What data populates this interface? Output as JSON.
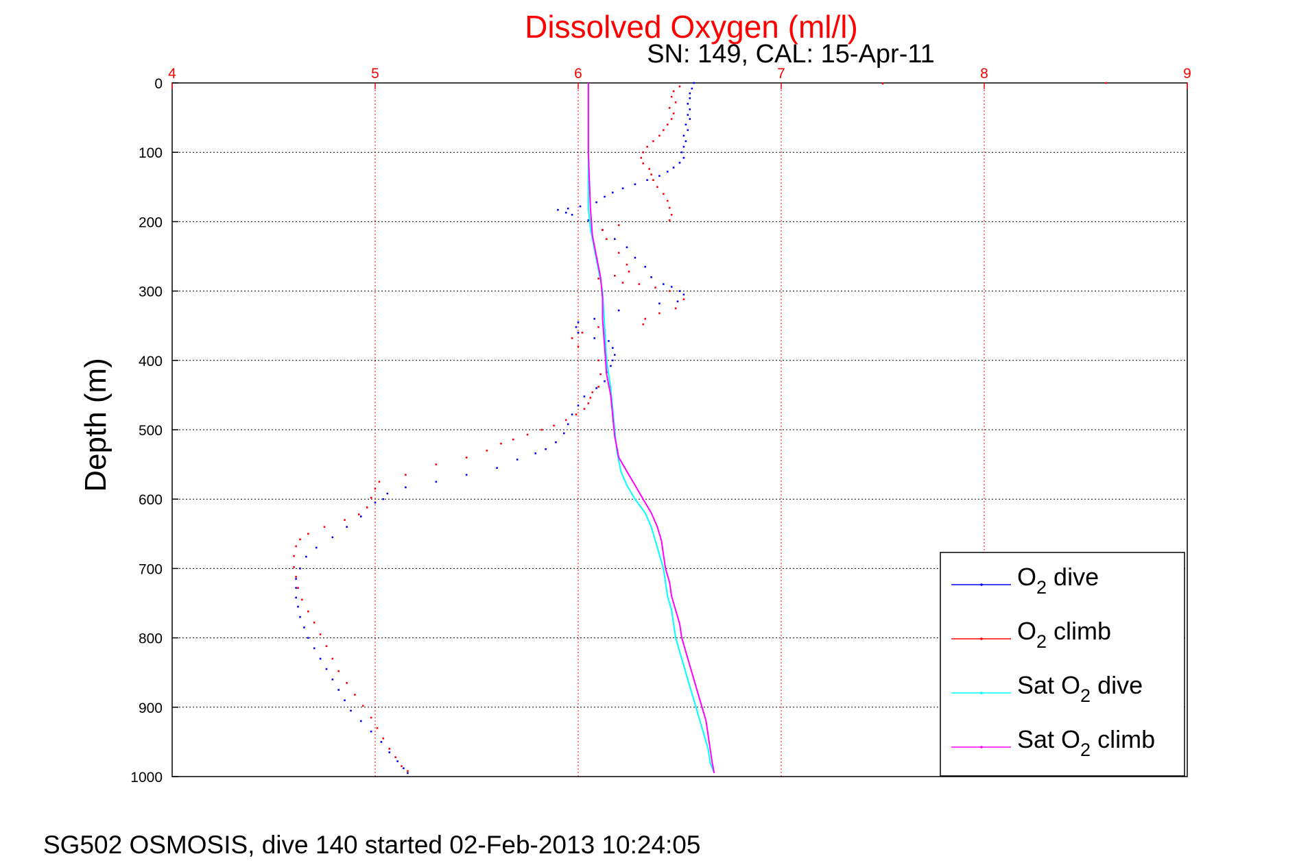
{
  "chart_data": {
    "type": "scatter",
    "title": "Dissolved Oxygen (ml/l)",
    "subtitle": "SN: 149, CAL: 15-Apr-11",
    "ylabel": "Depth (m)",
    "xlabel": "",
    "xlim": [
      4,
      9
    ],
    "ylim": [
      0,
      1000
    ],
    "y_reversed": true,
    "x_axis_position": "top",
    "x_ticks": [
      4,
      5,
      6,
      7,
      8,
      9
    ],
    "y_ticks": [
      0,
      100,
      200,
      300,
      400,
      500,
      600,
      700,
      800,
      900,
      1000
    ],
    "grid": true,
    "legend_position": "bottom-right",
    "colors": {
      "title": "#ff0000",
      "x_axis": "#ff0000",
      "y_axis": "#000000"
    },
    "series": [
      {
        "name": "O2 dive",
        "legend_label": {
          "base": "O",
          "sub": "2",
          "suffix": " dive"
        },
        "color": "#0000ff",
        "style": "points",
        "points": [
          [
            6.57,
            0
          ],
          [
            6.56,
            8
          ],
          [
            6.55,
            15
          ],
          [
            6.55,
            22
          ],
          [
            6.54,
            30
          ],
          [
            6.55,
            38
          ],
          [
            6.54,
            46
          ],
          [
            6.55,
            52
          ],
          [
            6.53,
            60
          ],
          [
            6.54,
            68
          ],
          [
            6.52,
            76
          ],
          [
            6.53,
            84
          ],
          [
            6.52,
            92
          ],
          [
            6.51,
            100
          ],
          [
            6.52,
            108
          ],
          [
            6.5,
            115
          ],
          [
            6.47,
            122
          ],
          [
            6.44,
            128
          ],
          [
            6.4,
            134
          ],
          [
            6.34,
            140
          ],
          [
            6.28,
            146
          ],
          [
            6.22,
            152
          ],
          [
            6.17,
            158
          ],
          [
            6.13,
            164
          ],
          [
            6.09,
            172
          ],
          [
            6.01,
            178
          ],
          [
            5.95,
            181
          ],
          [
            5.9,
            183
          ],
          [
            5.94,
            187
          ],
          [
            5.97,
            190
          ],
          [
            6.05,
            198
          ],
          [
            6.12,
            212
          ],
          [
            6.18,
            225
          ],
          [
            6.24,
            237
          ],
          [
            6.28,
            252
          ],
          [
            6.33,
            265
          ],
          [
            6.36,
            280
          ],
          [
            6.42,
            290
          ],
          [
            6.46,
            294
          ],
          [
            6.5,
            300
          ],
          [
            6.52,
            305
          ],
          [
            6.49,
            315
          ],
          [
            6.4,
            318
          ],
          [
            6.2,
            328
          ],
          [
            6.08,
            340
          ],
          [
            6.0,
            345
          ],
          [
            5.99,
            352
          ],
          [
            6.0,
            360
          ],
          [
            6.08,
            368
          ],
          [
            6.15,
            372
          ],
          [
            6.17,
            382
          ],
          [
            6.18,
            392
          ],
          [
            6.17,
            400
          ],
          [
            6.16,
            408
          ],
          [
            6.14,
            417
          ],
          [
            6.13,
            430
          ],
          [
            6.09,
            440
          ],
          [
            6.03,
            452
          ],
          [
            6.0,
            465
          ],
          [
            5.97,
            478
          ],
          [
            5.95,
            492
          ],
          [
            5.93,
            505
          ],
          [
            5.89,
            518
          ],
          [
            5.84,
            528
          ],
          [
            5.79,
            534
          ],
          [
            5.7,
            543
          ],
          [
            5.6,
            555
          ],
          [
            5.45,
            565
          ],
          [
            5.3,
            575
          ],
          [
            5.15,
            583
          ],
          [
            5.06,
            592
          ],
          [
            5.04,
            600
          ],
          [
            5.0,
            605
          ],
          [
            4.96,
            612
          ],
          [
            4.93,
            625
          ],
          [
            4.86,
            640
          ],
          [
            4.79,
            655
          ],
          [
            4.71,
            670
          ],
          [
            4.66,
            683
          ],
          [
            4.63,
            700
          ],
          [
            4.61,
            715
          ],
          [
            4.61,
            728
          ],
          [
            4.61,
            742
          ],
          [
            4.62,
            755
          ],
          [
            4.63,
            770
          ],
          [
            4.65,
            785
          ],
          [
            4.67,
            800
          ],
          [
            4.7,
            815
          ],
          [
            4.73,
            830
          ],
          [
            4.76,
            845
          ],
          [
            4.79,
            860
          ],
          [
            4.82,
            875
          ],
          [
            4.85,
            890
          ],
          [
            4.88,
            905
          ],
          [
            4.93,
            920
          ],
          [
            4.98,
            935
          ],
          [
            5.03,
            950
          ],
          [
            5.07,
            965
          ],
          [
            5.11,
            978
          ],
          [
            5.14,
            988
          ],
          [
            5.16,
            995
          ]
        ]
      },
      {
        "name": "O2 climb",
        "legend_label": {
          "base": "O",
          "sub": "2",
          "suffix": " climb"
        },
        "color": "#ff0000",
        "style": "points",
        "points": [
          [
            8.6,
            0
          ],
          [
            7.5,
            1
          ],
          [
            6.5,
            5
          ],
          [
            6.47,
            12
          ],
          [
            6.46,
            20
          ],
          [
            6.48,
            28
          ],
          [
            6.45,
            36
          ],
          [
            6.47,
            44
          ],
          [
            6.46,
            52
          ],
          [
            6.44,
            60
          ],
          [
            6.42,
            68
          ],
          [
            6.4,
            76
          ],
          [
            6.37,
            84
          ],
          [
            6.34,
            92
          ],
          [
            6.32,
            100
          ],
          [
            6.31,
            108
          ],
          [
            6.32,
            116
          ],
          [
            6.35,
            124
          ],
          [
            6.36,
            132
          ],
          [
            6.37,
            140
          ],
          [
            6.39,
            150
          ],
          [
            6.42,
            160
          ],
          [
            6.44,
            170
          ],
          [
            6.45,
            180
          ],
          [
            6.46,
            190
          ],
          [
            6.45,
            198
          ],
          [
            6.2,
            205
          ],
          [
            6.12,
            212
          ],
          [
            6.14,
            225
          ],
          [
            6.2,
            245
          ],
          [
            6.24,
            262
          ],
          [
            6.25,
            272
          ],
          [
            6.18,
            278
          ],
          [
            6.1,
            282
          ],
          [
            6.22,
            288
          ],
          [
            6.3,
            290
          ],
          [
            6.38,
            295
          ],
          [
            6.45,
            300
          ],
          [
            6.52,
            312
          ],
          [
            6.48,
            325
          ],
          [
            6.4,
            332
          ],
          [
            6.33,
            340
          ],
          [
            6.32,
            348
          ],
          [
            6.1,
            352
          ],
          [
            6.02,
            360
          ],
          [
            5.97,
            368
          ],
          [
            6.0,
            380
          ],
          [
            6.1,
            400
          ],
          [
            6.11,
            420
          ],
          [
            6.1,
            438
          ],
          [
            6.07,
            446
          ],
          [
            6.06,
            454
          ],
          [
            6.05,
            462
          ],
          [
            6.03,
            470
          ],
          [
            5.99,
            478
          ],
          [
            5.94,
            486
          ],
          [
            5.88,
            494
          ],
          [
            5.82,
            500
          ],
          [
            5.75,
            507
          ],
          [
            5.68,
            514
          ],
          [
            5.62,
            520
          ],
          [
            5.55,
            530
          ],
          [
            5.45,
            540
          ],
          [
            5.3,
            550
          ],
          [
            5.15,
            565
          ],
          [
            5.02,
            575
          ],
          [
            5.0,
            585
          ],
          [
            4.98,
            598
          ],
          [
            4.96,
            612
          ],
          [
            4.92,
            622
          ],
          [
            4.85,
            630
          ],
          [
            4.75,
            640
          ],
          [
            4.67,
            650
          ],
          [
            4.63,
            658
          ],
          [
            4.61,
            668
          ],
          [
            4.6,
            682
          ],
          [
            4.6,
            698
          ],
          [
            4.61,
            712
          ],
          [
            4.62,
            728
          ],
          [
            4.64,
            745
          ],
          [
            4.67,
            762
          ],
          [
            4.7,
            778
          ],
          [
            4.73,
            795
          ],
          [
            4.76,
            812
          ],
          [
            4.79,
            830
          ],
          [
            4.82,
            848
          ],
          [
            4.86,
            865
          ],
          [
            4.9,
            882
          ],
          [
            4.94,
            898
          ],
          [
            4.98,
            915
          ],
          [
            5.01,
            930
          ],
          [
            5.04,
            945
          ],
          [
            5.07,
            960
          ],
          [
            5.1,
            972
          ],
          [
            5.13,
            985
          ],
          [
            5.16,
            992
          ]
        ]
      },
      {
        "name": "Sat O2 dive",
        "legend_label": {
          "base": "Sat O",
          "sub": "2",
          "suffix": " dive"
        },
        "color": "#00ffff",
        "style": "line",
        "points": [
          [
            6.05,
            0
          ],
          [
            6.05,
            100
          ],
          [
            6.05,
            180
          ],
          [
            6.06,
            210
          ],
          [
            6.08,
            240
          ],
          [
            6.1,
            270
          ],
          [
            6.12,
            300
          ],
          [
            6.13,
            350
          ],
          [
            6.14,
            400
          ],
          [
            6.16,
            440
          ],
          [
            6.17,
            470
          ],
          [
            6.18,
            500
          ],
          [
            6.19,
            530
          ],
          [
            6.21,
            560
          ],
          [
            6.24,
            580
          ],
          [
            6.28,
            600
          ],
          [
            6.33,
            620
          ],
          [
            6.36,
            640
          ],
          [
            6.38,
            660
          ],
          [
            6.4,
            680
          ],
          [
            6.42,
            700
          ],
          [
            6.43,
            720
          ],
          [
            6.44,
            740
          ],
          [
            6.46,
            760
          ],
          [
            6.47,
            780
          ],
          [
            6.48,
            800
          ],
          [
            6.5,
            820
          ],
          [
            6.52,
            840
          ],
          [
            6.54,
            860
          ],
          [
            6.56,
            880
          ],
          [
            6.58,
            900
          ],
          [
            6.6,
            920
          ],
          [
            6.62,
            940
          ],
          [
            6.64,
            960
          ],
          [
            6.65,
            980
          ],
          [
            6.67,
            995
          ]
        ]
      },
      {
        "name": "Sat O2 climb",
        "legend_label": {
          "base": "Sat O",
          "sub": "2",
          "suffix": " climb"
        },
        "color": "#ff00ff",
        "style": "line",
        "points": [
          [
            6.05,
            0
          ],
          [
            6.05,
            100
          ],
          [
            6.06,
            180
          ],
          [
            6.07,
            220
          ],
          [
            6.09,
            250
          ],
          [
            6.11,
            280
          ],
          [
            6.12,
            310
          ],
          [
            6.12,
            340
          ],
          [
            6.13,
            380
          ],
          [
            6.14,
            420
          ],
          [
            6.16,
            450
          ],
          [
            6.17,
            480
          ],
          [
            6.18,
            510
          ],
          [
            6.2,
            540
          ],
          [
            6.24,
            560
          ],
          [
            6.28,
            580
          ],
          [
            6.32,
            600
          ],
          [
            6.36,
            620
          ],
          [
            6.39,
            640
          ],
          [
            6.41,
            660
          ],
          [
            6.42,
            680
          ],
          [
            6.43,
            700
          ],
          [
            6.45,
            720
          ],
          [
            6.46,
            740
          ],
          [
            6.48,
            760
          ],
          [
            6.5,
            780
          ],
          [
            6.51,
            800
          ],
          [
            6.53,
            820
          ],
          [
            6.55,
            840
          ],
          [
            6.57,
            860
          ],
          [
            6.59,
            880
          ],
          [
            6.61,
            900
          ],
          [
            6.63,
            920
          ],
          [
            6.64,
            940
          ],
          [
            6.65,
            960
          ],
          [
            6.66,
            980
          ],
          [
            6.67,
            995
          ]
        ]
      }
    ]
  },
  "footer": "SG502 OSMOSIS, dive 140 started 02-Feb-2013 10:24:05"
}
